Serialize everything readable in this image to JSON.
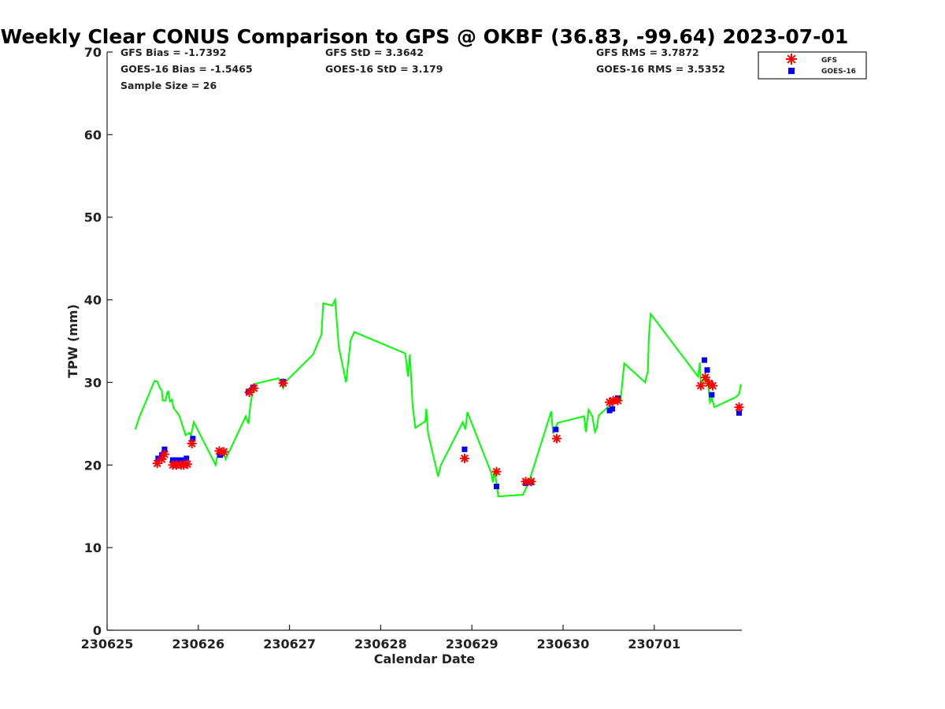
{
  "chart_data": {
    "type": "line",
    "title": "Weekly Clear CONUS Comparison to GPS @ OKBF (36.83, -99.64) 2023-07-01",
    "xlabel": "Calendar Date",
    "ylabel": "TPW (mm)",
    "x_units": "days since 230625",
    "xlim": [
      0,
      6.96
    ],
    "ylim": [
      0,
      70
    ],
    "xticks": [
      0,
      1,
      2,
      3,
      4,
      5,
      6
    ],
    "xtick_labels": [
      "230625",
      "230626",
      "230627",
      "230628",
      "230629",
      "230630",
      "230701"
    ],
    "yticks": [
      0,
      10,
      20,
      30,
      40,
      50,
      60,
      70
    ],
    "ytick_labels": [
      "0",
      "10",
      "20",
      "30",
      "40",
      "50",
      "60",
      "70"
    ],
    "grid": false,
    "legend": {
      "placement": "top-right",
      "entries": [
        "GFS",
        "GOES-16"
      ]
    },
    "stats": {
      "gfs_bias": "GFS Bias = -1.7392",
      "goes_bias": "GOES-16 Bias = -1.5465",
      "sample_size": "Sample Size = 26",
      "gfs_std": "GFS StD = 3.3642",
      "goes_std": "GOES-16 StD = 3.179",
      "gfs_rms": "GFS RMS = 3.7872",
      "goes_rms": "GOES-16 RMS = 3.5352"
    },
    "colors": {
      "gps": "#00ff00",
      "gfs": "#ff0000",
      "goes": "#0000ff"
    },
    "series": [
      {
        "name": "GPS",
        "kind": "line",
        "points": [
          [
            0.31,
            24.3
          ],
          [
            0.35,
            25.7
          ],
          [
            0.52,
            30.2
          ],
          [
            0.55,
            30.1
          ],
          [
            0.58,
            29.3
          ],
          [
            0.6,
            29
          ],
          [
            0.61,
            27.8
          ],
          [
            0.64,
            27.8
          ],
          [
            0.66,
            28.8
          ],
          [
            0.67,
            28.9
          ],
          [
            0.69,
            27.7
          ],
          [
            0.71,
            27.9
          ],
          [
            0.73,
            26.9
          ],
          [
            0.79,
            26
          ],
          [
            0.85,
            24
          ],
          [
            0.86,
            23.6
          ],
          [
            0.9,
            23.9
          ],
          [
            0.92,
            23.6
          ],
          [
            0.95,
            25.2
          ],
          [
            1.19,
            20
          ],
          [
            1.22,
            21.9
          ],
          [
            1.28,
            21.5
          ],
          [
            1.3,
            20.7
          ],
          [
            1.52,
            25.9
          ],
          [
            1.55,
            25
          ],
          [
            1.57,
            27.2
          ],
          [
            1.61,
            29.8
          ],
          [
            1.88,
            30.5
          ],
          [
            1.93,
            29.3
          ],
          [
            1.95,
            30
          ],
          [
            2.26,
            33.4
          ],
          [
            2.3,
            34.5
          ],
          [
            2.35,
            35.8
          ],
          [
            2.37,
            39.6
          ],
          [
            2.47,
            39.3
          ],
          [
            2.5,
            40
          ],
          [
            2.52,
            37.2
          ],
          [
            2.54,
            34.3
          ],
          [
            2.62,
            30
          ],
          [
            2.67,
            35.1
          ],
          [
            2.71,
            36.1
          ],
          [
            3.27,
            33.5
          ],
          [
            3.3,
            30.7
          ],
          [
            3.32,
            33.4
          ],
          [
            3.35,
            27.2
          ],
          [
            3.38,
            24.5
          ],
          [
            3.49,
            25.3
          ],
          [
            3.5,
            26.8
          ],
          [
            3.52,
            23.8
          ],
          [
            3.56,
            21.9
          ],
          [
            3.63,
            18.6
          ],
          [
            3.66,
            20
          ],
          [
            3.9,
            25.2
          ],
          [
            3.93,
            24.3
          ],
          [
            3.95,
            26.4
          ],
          [
            4.21,
            19.1
          ],
          [
            4.23,
            17.9
          ],
          [
            4.25,
            19.3
          ],
          [
            4.29,
            16.2
          ],
          [
            4.56,
            16.4
          ],
          [
            4.63,
            18.1
          ],
          [
            4.87,
            26.5
          ],
          [
            4.89,
            23.8
          ],
          [
            4.94,
            25.1
          ],
          [
            5.23,
            25.9
          ],
          [
            5.25,
            24
          ],
          [
            5.28,
            26.7
          ],
          [
            5.32,
            25.9
          ],
          [
            5.35,
            24
          ],
          [
            5.37,
            24.5
          ],
          [
            5.39,
            26
          ],
          [
            5.53,
            27.4
          ],
          [
            5.63,
            27.8
          ],
          [
            5.65,
            30
          ],
          [
            5.67,
            32.3
          ],
          [
            5.9,
            30
          ],
          [
            5.93,
            31.4
          ],
          [
            5.94,
            35.5
          ],
          [
            5.96,
            38.3
          ],
          [
            6.48,
            30.7
          ],
          [
            6.5,
            32.4
          ],
          [
            6.51,
            29.8
          ],
          [
            6.58,
            30.8
          ],
          [
            6.61,
            27.6
          ],
          [
            6.63,
            28.1
          ],
          [
            6.66,
            27
          ],
          [
            6.89,
            28.2
          ],
          [
            6.93,
            28.6
          ],
          [
            6.95,
            29.8
          ]
        ]
      },
      {
        "name": "GFS",
        "kind": "star",
        "points": [
          [
            0.55,
            20.2
          ],
          [
            0.6,
            20.7
          ],
          [
            0.63,
            21.3
          ],
          [
            0.72,
            20
          ],
          [
            0.76,
            20
          ],
          [
            0.81,
            20
          ],
          [
            0.84,
            20
          ],
          [
            0.88,
            20.1
          ],
          [
            0.93,
            22.6
          ],
          [
            1.23,
            21.7
          ],
          [
            1.28,
            21.6
          ],
          [
            1.56,
            28.8
          ],
          [
            1.61,
            29.3
          ],
          [
            1.93,
            29.9
          ],
          [
            3.92,
            20.8
          ],
          [
            4.27,
            19.2
          ],
          [
            4.59,
            18
          ],
          [
            4.65,
            18
          ],
          [
            4.93,
            23.2
          ],
          [
            5.51,
            27.6
          ],
          [
            5.55,
            27.8
          ],
          [
            5.6,
            27.8
          ],
          [
            6.51,
            29.6
          ],
          [
            6.56,
            30.6
          ],
          [
            6.6,
            29.9
          ],
          [
            6.64,
            29.6
          ],
          [
            6.93,
            27
          ]
        ]
      },
      {
        "name": "GOES-16",
        "kind": "square",
        "points": [
          [
            0.56,
            20.8
          ],
          [
            0.6,
            21.2
          ],
          [
            0.63,
            21.9
          ],
          [
            0.72,
            20.6
          ],
          [
            0.76,
            20.6
          ],
          [
            0.81,
            20.6
          ],
          [
            0.87,
            20.8
          ],
          [
            0.94,
            23.2
          ],
          [
            1.24,
            21.2
          ],
          [
            1.55,
            28.9
          ],
          [
            1.6,
            29.4
          ],
          [
            1.93,
            30.1
          ],
          [
            3.92,
            21.9
          ],
          [
            4.27,
            17.4
          ],
          [
            4.59,
            17.8
          ],
          [
            4.65,
            17.9
          ],
          [
            4.92,
            24.3
          ],
          [
            5.51,
            26.6
          ],
          [
            5.54,
            26.8
          ],
          [
            5.6,
            28.1
          ],
          [
            6.55,
            32.7
          ],
          [
            6.58,
            31.5
          ],
          [
            6.63,
            28.5
          ],
          [
            6.93,
            26.3
          ]
        ]
      }
    ]
  }
}
